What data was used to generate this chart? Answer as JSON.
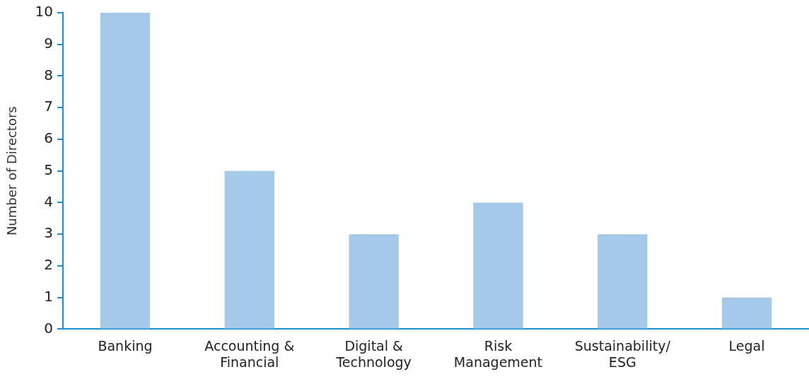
{
  "chart_data": {
    "type": "bar",
    "ylabel": "Number of Directors",
    "categories": [
      "Banking",
      "Accounting & Financial",
      "Digital & Technology",
      "Risk Management",
      "Sustainability/ESG",
      "Legal"
    ],
    "values": [
      10,
      5,
      3,
      4,
      3,
      1
    ],
    "color": "#a5c9e8",
    "ylim": [
      0,
      10
    ],
    "yticks": [
      0,
      1,
      2,
      3,
      4,
      5,
      6,
      7,
      8,
      9,
      10
    ],
    "grid": false,
    "legend": false
  }
}
